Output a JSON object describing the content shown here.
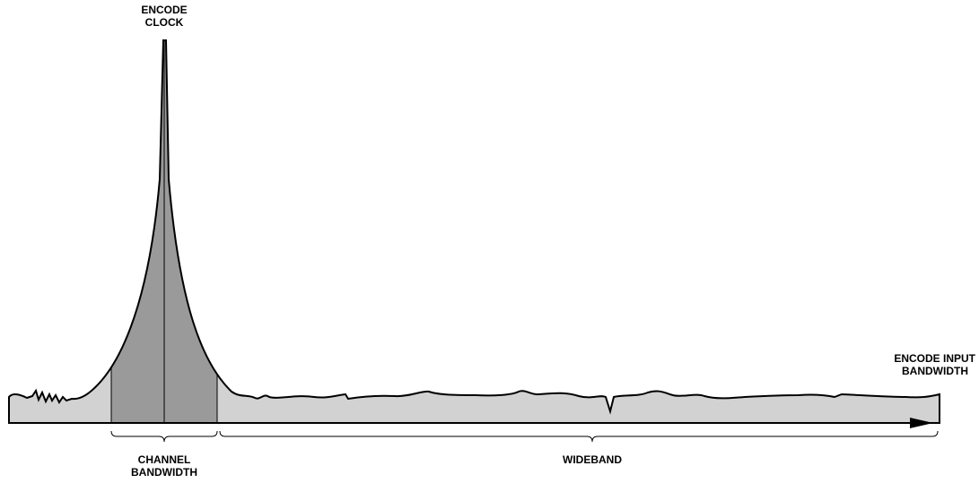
{
  "labels": {
    "encode_clock": [
      "ENCODE",
      "CLOCK"
    ],
    "channel_bandwidth": [
      "CHANNEL",
      "BANDWIDTH"
    ],
    "wideband": "WIDEBAND",
    "encode_input_bandwidth": [
      "ENCODE INPUT",
      "BANDWIDTH"
    ]
  }
}
